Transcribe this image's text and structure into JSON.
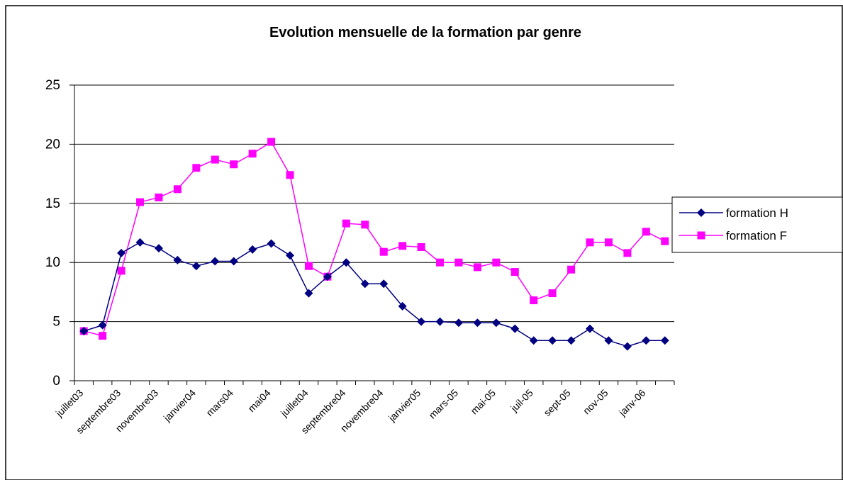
{
  "chart_data": {
    "type": "line",
    "title": "Evolution mensuelle de la formation par genre",
    "categories": [
      "juillet03",
      null,
      "septembre03",
      null,
      "novembre03",
      null,
      "janvier04",
      null,
      "mars04",
      null,
      "mai04",
      null,
      "juillet04",
      null,
      "septembre04",
      null,
      "novembre04",
      null,
      "janvier05",
      null,
      "mars-05",
      null,
      "mai-05",
      null,
      "juil-05",
      null,
      "sept-05",
      null,
      "nov-05",
      null,
      "janv-06",
      null
    ],
    "series": [
      {
        "name": "formation H",
        "color": "#000080",
        "marker": "diamond",
        "values": [
          4.2,
          4.7,
          10.8,
          11.7,
          11.2,
          10.2,
          9.7,
          10.1,
          10.1,
          11.1,
          11.6,
          10.6,
          7.4,
          8.8,
          10.0,
          8.2,
          8.2,
          6.3,
          5.0,
          5.0,
          4.9,
          4.9,
          4.9,
          4.4,
          3.4,
          3.4,
          3.4,
          4.4,
          3.4,
          2.9,
          3.4,
          3.4
        ]
      },
      {
        "name": "formation F",
        "color": "#ff00ff",
        "marker": "square",
        "values": [
          4.2,
          3.8,
          9.3,
          15.1,
          15.5,
          16.2,
          18.0,
          18.7,
          18.3,
          19.2,
          20.2,
          17.4,
          9.7,
          8.8,
          13.3,
          13.2,
          10.9,
          11.4,
          11.3,
          10.0,
          10.0,
          9.6,
          10.0,
          9.2,
          6.8,
          7.4,
          9.4,
          11.7,
          11.7,
          10.8,
          12.6,
          11.8
        ]
      }
    ],
    "ylim": [
      0,
      25
    ],
    "yticks": [
      0,
      5,
      10,
      15,
      20,
      25
    ],
    "grid": true,
    "legend": "right"
  }
}
